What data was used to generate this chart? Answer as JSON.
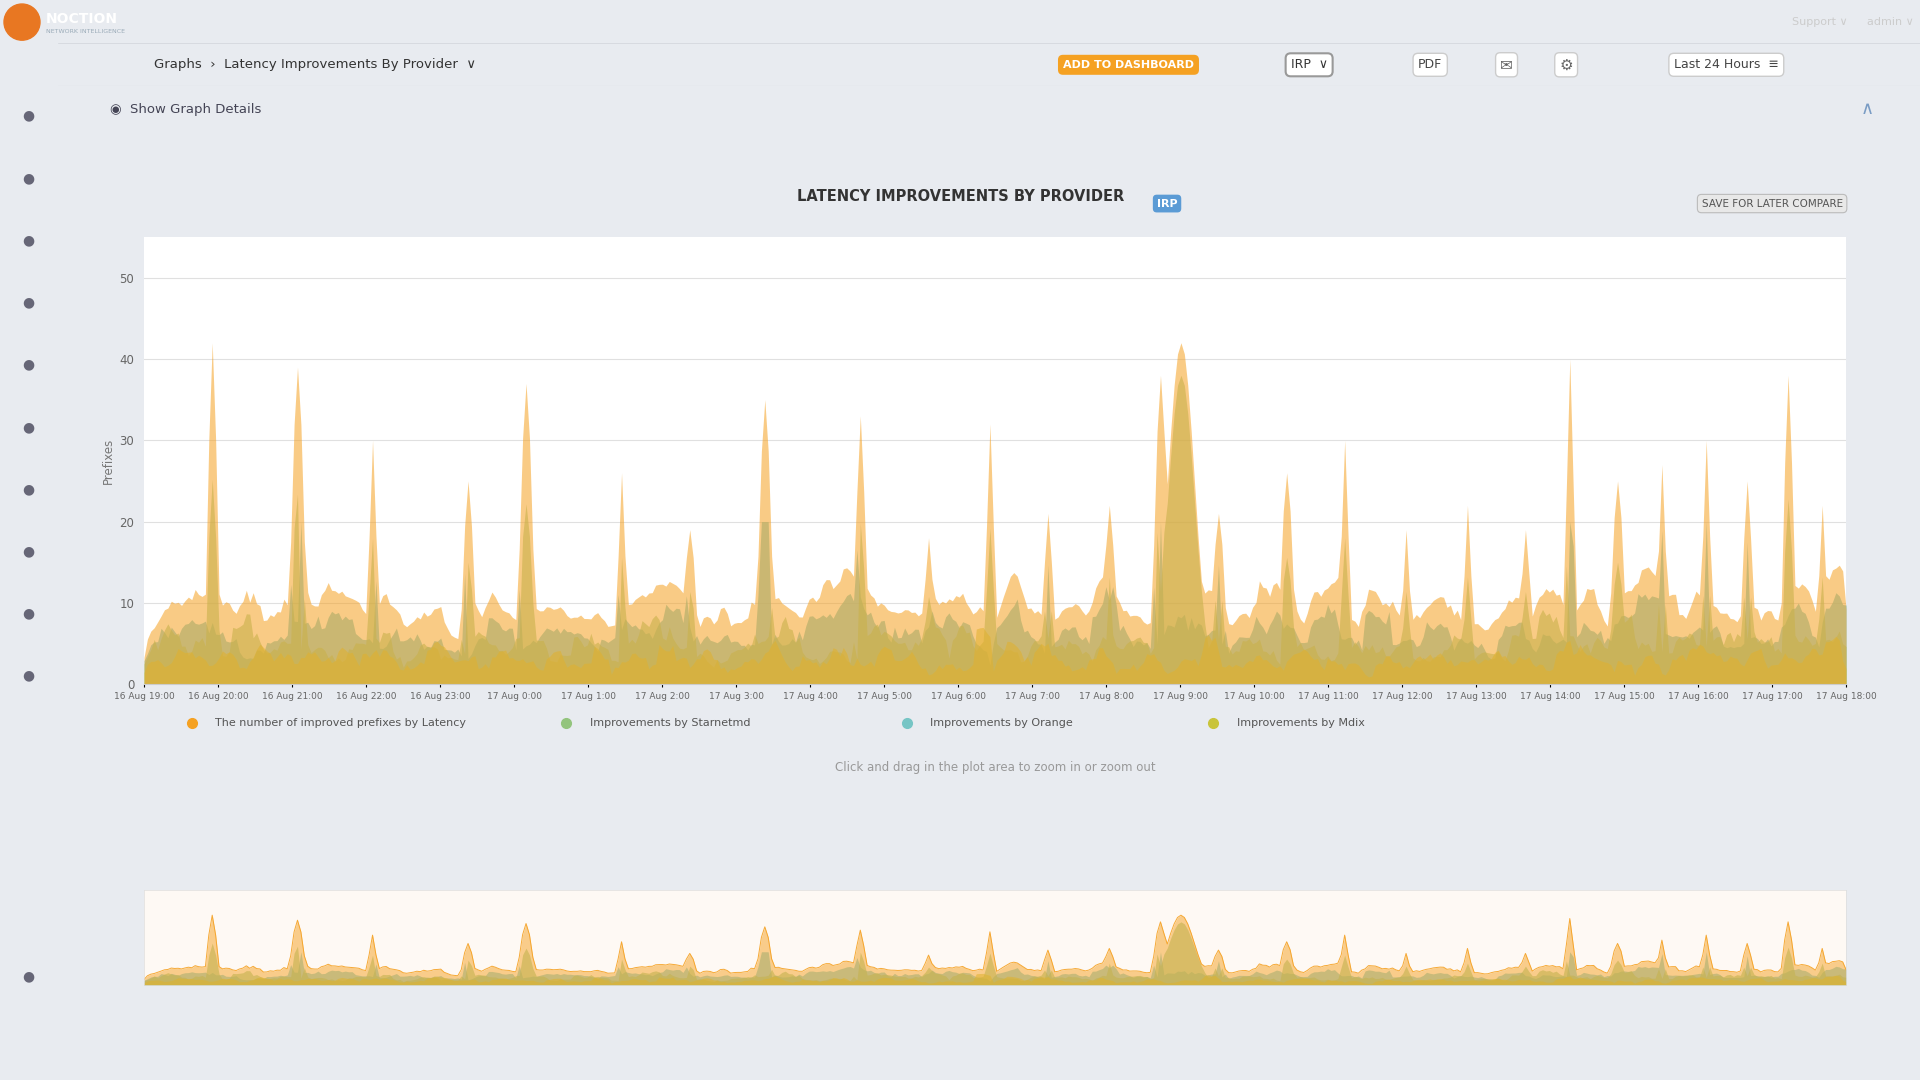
{
  "title": "LATENCY IMPROVEMENTS BY PROVIDER",
  "ylabel": "Prefixes",
  "yticks": [
    0,
    10,
    20,
    30,
    40,
    50
  ],
  "ylim": [
    0,
    55
  ],
  "bg_color": "#ffffff",
  "outer_bg": "#e8ebf0",
  "nav_bg": "#35373d",
  "sidebar_bg": "#3a3d44",
  "content_bg": "#edf0f5",
  "panel_bg": "#ffffff",
  "details_bar_bg": "#dde4ef",
  "grid_color": "#e0e0e0",
  "color_orange": "#f5a122",
  "color_green": "#93c47d",
  "color_teal": "#76c5c5",
  "color_yellow": "#c9c43a",
  "legend_items": [
    {
      "label": "The number of improved prefixes by Latency",
      "color": "#f5a122"
    },
    {
      "label": "Improvements by Starnetmd",
      "color": "#93c47d"
    },
    {
      "label": "Improvements by Orange",
      "color": "#76c5c5"
    },
    {
      "label": "Improvements by Mdix",
      "color": "#c9c43a"
    }
  ],
  "xtick_labels": [
    "16 Aug 19:00",
    "16 Aug 20:00",
    "16 Aug 21:00",
    "16 Aug 22:00",
    "16 Aug 23:00",
    "17 Aug 0:00",
    "17 Aug 1:00",
    "17 Aug 2:00",
    "17 Aug 3:00",
    "17 Aug 4:00",
    "17 Aug 5:00",
    "17 Aug 6:00",
    "17 Aug 7:00",
    "17 Aug 8:00",
    "17 Aug 9:00",
    "17 Aug 10:00",
    "17 Aug 11:00",
    "17 Aug 12:00",
    "17 Aug 13:00",
    "17 Aug 14:00",
    "17 Aug 15:00",
    "17 Aug 16:00",
    "17 Aug 17:00",
    "17 Aug 18:00"
  ],
  "n_points": 500,
  "irp_badge_color": "#5b9bd5",
  "save_btn_bg": "#e8e8e8",
  "save_btn_border": "#bbbbbb",
  "add_dashboard_bg": "#f5a122",
  "breadcrumb_text": "Graphs  ›  Latency Improvements By Provider",
  "show_details_text": "Show Graph Details",
  "click_drag_text": "Click and drag in the plot area to zoom in or zoom out",
  "last24_text": "Last 24 Hours"
}
